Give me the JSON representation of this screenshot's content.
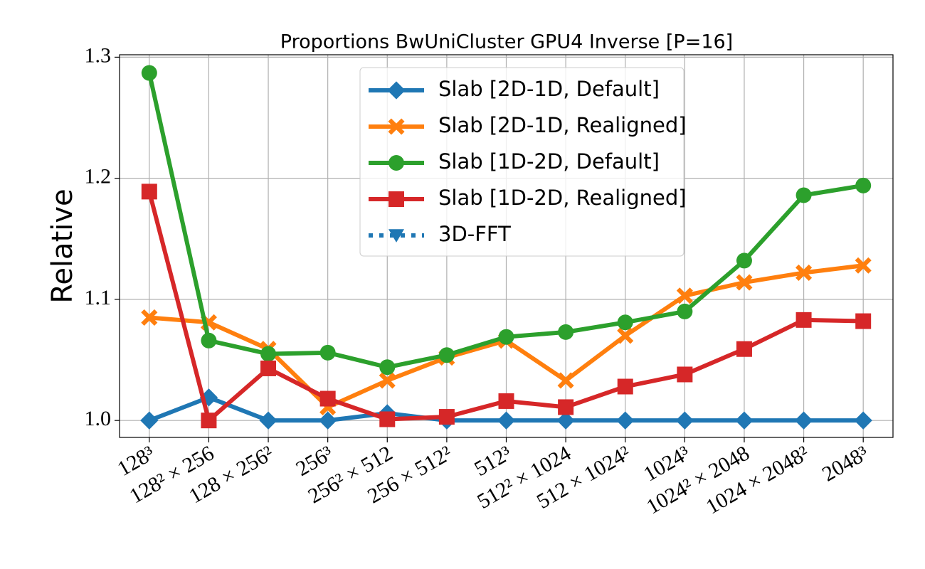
{
  "chart_data": {
    "type": "line",
    "title": "Proportions BwUniCluster GPU4 Inverse [P=16]",
    "y_label": "Relative",
    "categories": [
      "128³",
      "128² × 256",
      "128 × 256²",
      "256³",
      "256² × 512",
      "256 × 512²",
      "512³",
      "512² × 1024",
      "512 × 1024²",
      "1024³",
      "1024² × 2048",
      "1024 × 2048²",
      "2048³"
    ],
    "series": [
      {
        "name": "Slab [2D-1D, Default]",
        "color": "#1f77b4",
        "marker": "diamond",
        "linestyle": "solid",
        "values": [
          1.0,
          1.019,
          1.0,
          1.0,
          1.006,
          1.0,
          1.0,
          1.0,
          1.0,
          1.0,
          1.0,
          1.0,
          1.0
        ]
      },
      {
        "name": "Slab [2D-1D, Realigned]",
        "color": "#ff7f0e",
        "marker": "x",
        "linestyle": "solid",
        "values": [
          1.085,
          1.081,
          1.059,
          1.011,
          1.033,
          1.052,
          1.066,
          1.033,
          1.07,
          1.103,
          1.114,
          1.122,
          1.128
        ]
      },
      {
        "name": "Slab [1D-2D, Default]",
        "color": "#2ca02c",
        "marker": "circle",
        "linestyle": "solid",
        "values": [
          1.287,
          1.066,
          1.055,
          1.056,
          1.044,
          1.054,
          1.069,
          1.073,
          1.081,
          1.09,
          1.132,
          1.186,
          1.194
        ]
      },
      {
        "name": "Slab [1D-2D, Realigned]",
        "color": "#d62728",
        "marker": "square",
        "linestyle": "solid",
        "values": [
          1.189,
          1.0,
          1.043,
          1.018,
          1.001,
          1.003,
          1.016,
          1.011,
          1.028,
          1.038,
          1.059,
          1.083,
          1.082
        ]
      },
      {
        "name": "3D-FFT",
        "color": "#1f77b4",
        "marker": "triangle-down",
        "linestyle": "dotted",
        "values": [
          null,
          null,
          null,
          null,
          null,
          null,
          null,
          null,
          null,
          null,
          null,
          null,
          null
        ]
      }
    ],
    "ylim": [
      0.986,
      1.302
    ],
    "yticks": [
      {
        "value": 1.0,
        "label": "1.0"
      },
      {
        "value": 1.1,
        "label": "1.1"
      },
      {
        "value": 1.2,
        "label": "1.2"
      },
      {
        "value": 1.3,
        "label": "1.3"
      }
    ],
    "grid": true,
    "legend": "upper center"
  }
}
